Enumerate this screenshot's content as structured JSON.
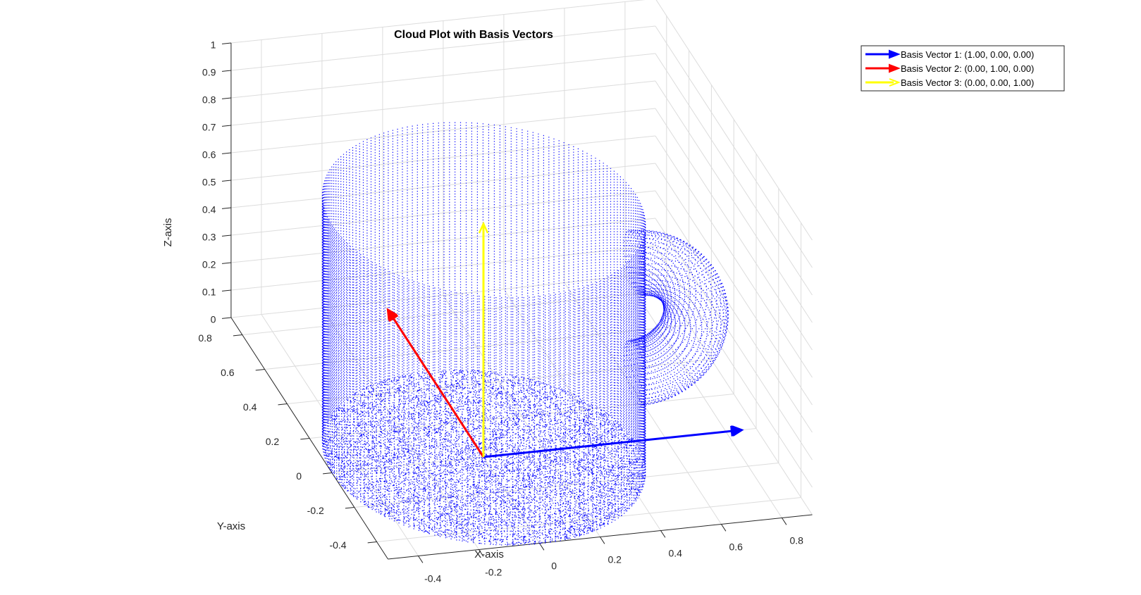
{
  "chart_data": {
    "type": "scatter3d",
    "title": "Cloud Plot with Basis Vectors",
    "xlabel": "X-axis",
    "ylabel": "Y-axis",
    "zlabel": "Z-axis",
    "xlim": [
      -0.5,
      0.9
    ],
    "ylim": [
      -0.5,
      0.9
    ],
    "zlim": [
      0,
      1
    ],
    "x_ticks": [
      "-0.4",
      "-0.2",
      "0",
      "0.2",
      "0.4",
      "0.6",
      "0.8"
    ],
    "y_ticks": [
      "-0.4",
      "-0.2",
      "0",
      "0.2",
      "0.4",
      "0.6",
      "0.8"
    ],
    "z_ticks": [
      "0",
      "0.1",
      "0.2",
      "0.3",
      "0.4",
      "0.5",
      "0.6",
      "0.7",
      "0.8",
      "0.9",
      "1"
    ],
    "grid": true,
    "legend_position": "top-right",
    "point_cloud": {
      "shape": "mug",
      "color": "#0000ff",
      "body_radius": 0.5,
      "body_height": 0.9,
      "body_center": [
        0,
        0
      ],
      "handle_center": [
        0.5,
        0,
        0.45
      ],
      "handle_major_radius": 0.2,
      "handle_minor_radius": 0.1
    },
    "series": [
      {
        "name": "Basis Vector 1: (1.00, 0.00, 0.00)",
        "color": "#0000ff",
        "origin": [
          0,
          0,
          0
        ],
        "vector": [
          1.0,
          0.0,
          0.0
        ]
      },
      {
        "name": "Basis Vector 2: (0.00, 1.00, 0.00)",
        "color": "#ff0000",
        "origin": [
          0,
          0,
          0
        ],
        "vector": [
          0.0,
          1.0,
          0.0
        ]
      },
      {
        "name": "Basis Vector 3: (0.00, 0.00, 1.00)",
        "color": "#ffff00",
        "origin": [
          0,
          0,
          0
        ],
        "vector": [
          0.0,
          0.0,
          1.0
        ]
      }
    ]
  }
}
